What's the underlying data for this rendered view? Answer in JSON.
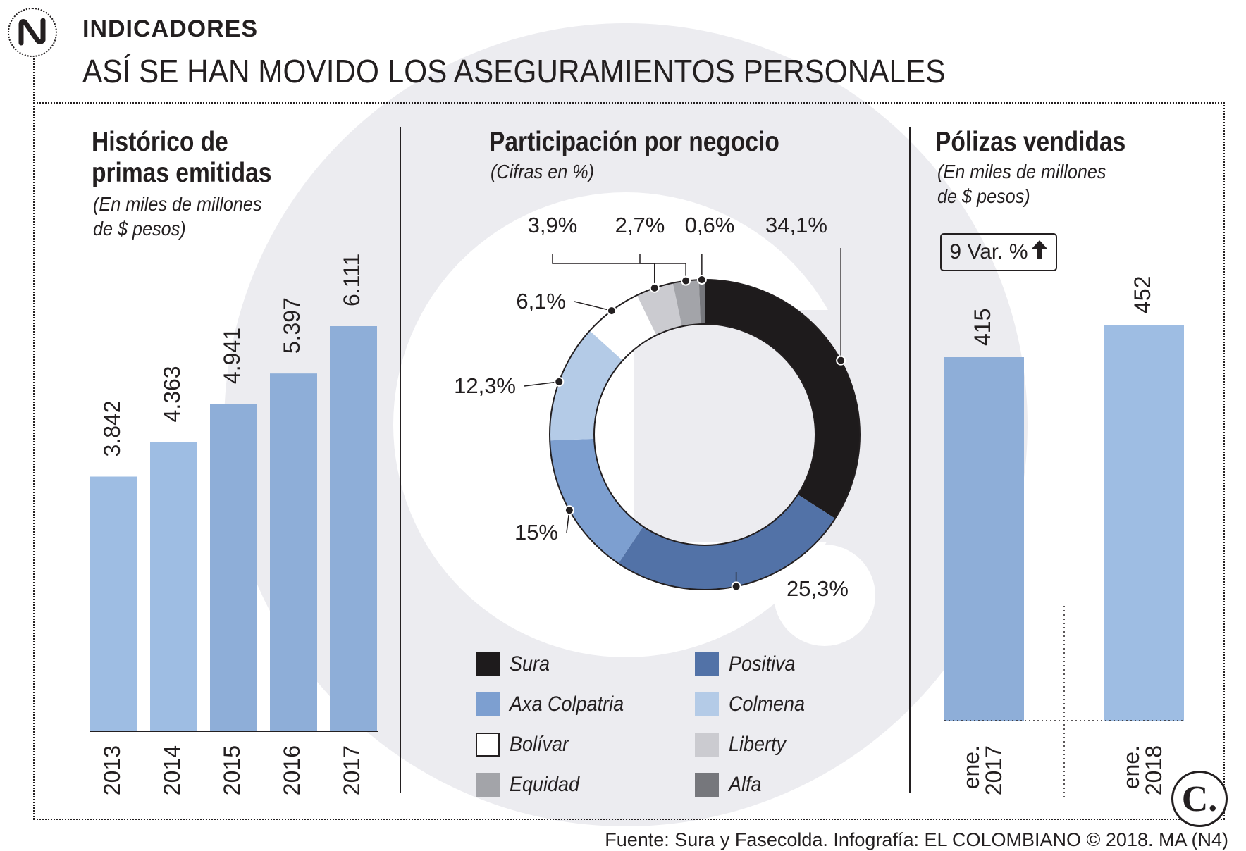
{
  "header": {
    "kicker": "INDICADORES",
    "headline": "ASÍ SE HAN MOVIDO LOS ASEGURAMIENTOS PERSONALES"
  },
  "panels": {
    "historico": {
      "title_line1": "Histórico de",
      "title_line2": "primas emitidas",
      "subtitle_line1": "(En miles de millones",
      "subtitle_line2": "de $ pesos)"
    },
    "participacion": {
      "title": "Participación por negocio",
      "subtitle": "(Cifras en %)"
    },
    "polizas": {
      "title": "Pólizas vendidas",
      "subtitle_line1": "(En miles de millones",
      "subtitle_line2": "de $ pesos)",
      "variation_value": "9",
      "variation_label": "Var. %"
    }
  },
  "colors": {
    "bar_light": "#9ebde3",
    "bar_dark": "#8eaed8",
    "watermark": "#ececf0",
    "ink": "#231f20"
  },
  "chart_data": [
    {
      "type": "bar",
      "title": "Histórico de primas emitidas",
      "ylabel": "En miles de millones de $ pesos",
      "categories": [
        "2013",
        "2014",
        "2015",
        "2016",
        "2017"
      ],
      "values": [
        3842,
        4363,
        4941,
        5397,
        6111
      ],
      "value_labels": [
        "3.842",
        "4.363",
        "4.941",
        "5.397",
        "6.111"
      ],
      "ylim": [
        0,
        6111
      ]
    },
    {
      "type": "pie",
      "title": "Participación por negocio",
      "unit": "%",
      "donut": true,
      "slices": [
        {
          "name": "Sura",
          "value": 34.1,
          "label": "34,1%",
          "color": "#1e1b1c"
        },
        {
          "name": "Positiva",
          "value": 25.3,
          "label": "25,3%",
          "color": "#5272a7"
        },
        {
          "name": "Axa Colpatria",
          "value": 15,
          "label": "15%",
          "color": "#7d9fd0"
        },
        {
          "name": "Colmena",
          "value": 12.3,
          "label": "12,3%",
          "color": "#b4cbe7"
        },
        {
          "name": "Bolívar",
          "value": 6.1,
          "label": "6,1%",
          "color": "#ffffff"
        },
        {
          "name": "Liberty",
          "value": 3.9,
          "label": "3,9%",
          "color": "#cbcbd0"
        },
        {
          "name": "Equidad",
          "value": 2.7,
          "label": "2,7%",
          "color": "#a3a4a9"
        },
        {
          "name": "Alfa",
          "value": 0.6,
          "label": "0,6%",
          "color": "#76777c"
        }
      ],
      "legend": [
        "Sura",
        "Positiva",
        "Axa Colpatria",
        "Colmena",
        "Bolívar",
        "Liberty",
        "Equidad",
        "Alfa"
      ]
    },
    {
      "type": "bar",
      "title": "Pólizas vendidas",
      "ylabel": "En miles de millones de $ pesos",
      "categories": [
        [
          "ene.",
          "2017"
        ],
        [
          "ene.",
          "2018"
        ]
      ],
      "values": [
        415,
        452
      ],
      "value_labels": [
        "415",
        "452"
      ],
      "ylim": [
        0,
        452
      ]
    }
  ],
  "footer": {
    "source": "Fuente: Sura y Fasecolda. Infografía: EL COLOMBIANO © 2018. MA (N4)",
    "logo_letter": "C."
  }
}
